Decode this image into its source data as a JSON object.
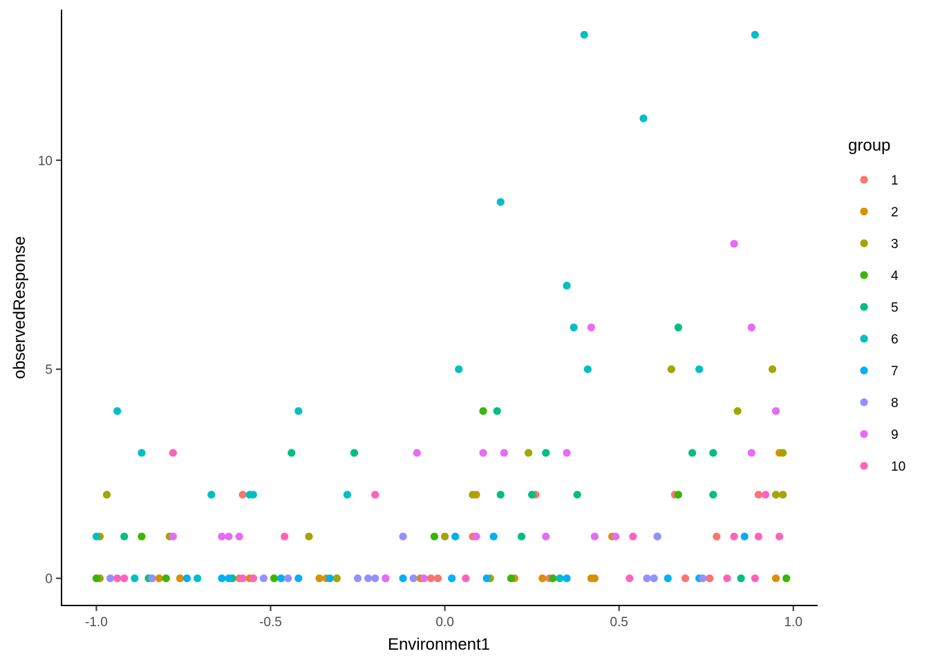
{
  "chart_data": {
    "type": "scatter",
    "title": "",
    "xlabel": "Environment1",
    "ylabel": "observedResponse",
    "xlim": [
      -1.1,
      1.07
    ],
    "ylim": [
      -0.65,
      13.6
    ],
    "xticks": [
      -1.0,
      -0.5,
      0.0,
      0.5,
      1.0
    ],
    "xtick_labels": [
      "-1.0",
      "-0.5",
      "0.0",
      "0.5",
      "1.0"
    ],
    "yticks": [
      0,
      5,
      10
    ],
    "ytick_labels": [
      "0",
      "5",
      "10"
    ],
    "grid": false,
    "legend": {
      "title": "group",
      "placement": "right"
    },
    "series": [
      {
        "name": "1",
        "color": "#F8766D",
        "points": [
          [
            -0.58,
            2
          ],
          [
            0.08,
            1
          ],
          [
            0.26,
            2
          ],
          [
            0.66,
            2
          ],
          [
            0.78,
            1
          ],
          [
            0.9,
            2
          ],
          [
            -0.59,
            0
          ],
          [
            -0.04,
            0
          ],
          [
            -0.02,
            0
          ],
          [
            0.3,
            0
          ],
          [
            0.69,
            0
          ],
          [
            0.76,
            0
          ]
        ]
      },
      {
        "name": "2",
        "color": "#D89000",
        "points": [
          [
            0.09,
            2
          ],
          [
            0.48,
            1
          ],
          [
            0.96,
            3
          ],
          [
            -0.56,
            0
          ],
          [
            -0.36,
            0
          ],
          [
            -0.34,
            0
          ],
          [
            -0.07,
            0
          ],
          [
            0.2,
            0
          ],
          [
            0.28,
            0
          ],
          [
            0.42,
            0
          ],
          [
            0.43,
            0
          ],
          [
            0.95,
            0
          ],
          [
            -0.82,
            0
          ],
          [
            -0.76,
            0
          ]
        ]
      },
      {
        "name": "3",
        "color": "#A3A500",
        "points": [
          [
            -0.97,
            2
          ],
          [
            -0.79,
            1
          ],
          [
            -0.39,
            1
          ],
          [
            0.08,
            2
          ],
          [
            0.24,
            3
          ],
          [
            0.65,
            5
          ],
          [
            0.84,
            4
          ],
          [
            0.94,
            5
          ],
          [
            0.97,
            3
          ],
          [
            0.95,
            2
          ],
          [
            0.97,
            2
          ],
          [
            -0.99,
            1
          ],
          [
            0.0,
            1
          ],
          [
            -0.31,
            0
          ],
          [
            0.13,
            0
          ],
          [
            -0.99,
            0
          ]
        ]
      },
      {
        "name": "4",
        "color": "#39B600",
        "points": [
          [
            0.11,
            4
          ],
          [
            0.67,
            2
          ],
          [
            -0.87,
            1
          ],
          [
            -0.03,
            1
          ],
          [
            -0.49,
            0
          ],
          [
            0.19,
            0
          ],
          [
            0.31,
            0
          ],
          [
            0.98,
            0
          ],
          [
            -1.0,
            0
          ],
          [
            -0.8,
            0
          ],
          [
            -0.55,
            0
          ]
        ]
      },
      {
        "name": "5",
        "color": "#00BF7D",
        "points": [
          [
            -0.44,
            3
          ],
          [
            -0.26,
            3
          ],
          [
            0.15,
            4
          ],
          [
            0.16,
            2
          ],
          [
            0.25,
            2
          ],
          [
            0.29,
            3
          ],
          [
            0.38,
            2
          ],
          [
            0.67,
            6
          ],
          [
            0.71,
            3
          ],
          [
            0.77,
            3
          ],
          [
            0.77,
            2
          ],
          [
            -0.92,
            1
          ],
          [
            0.22,
            1
          ],
          [
            0.61,
            1
          ],
          [
            0.85,
            0
          ],
          [
            -0.85,
            0
          ],
          [
            -0.61,
            0
          ]
        ]
      },
      {
        "name": "6",
        "color": "#00BFC4",
        "points": [
          [
            -0.94,
            4
          ],
          [
            -0.87,
            3
          ],
          [
            -0.67,
            2
          ],
          [
            -0.56,
            2
          ],
          [
            -0.55,
            2
          ],
          [
            -0.42,
            4
          ],
          [
            -0.28,
            2
          ],
          [
            0.04,
            5
          ],
          [
            0.16,
            9
          ],
          [
            0.35,
            7
          ],
          [
            0.37,
            6
          ],
          [
            0.4,
            13
          ],
          [
            0.41,
            5
          ],
          [
            0.57,
            11
          ],
          [
            0.73,
            5
          ],
          [
            0.89,
            13
          ],
          [
            -1.0,
            1
          ],
          [
            -0.71,
            0
          ],
          [
            -0.89,
            0
          ],
          [
            0.33,
            0
          ]
        ]
      },
      {
        "name": "7",
        "color": "#00B0F6",
        "points": [
          [
            0.03,
            1
          ],
          [
            0.14,
            1
          ],
          [
            0.86,
            1
          ],
          [
            -0.74,
            0
          ],
          [
            -0.64,
            0
          ],
          [
            -0.62,
            0
          ],
          [
            -0.47,
            0
          ],
          [
            -0.42,
            0
          ],
          [
            -0.17,
            0
          ],
          [
            -0.12,
            0
          ],
          [
            0.02,
            0
          ],
          [
            0.12,
            0
          ],
          [
            0.35,
            0
          ],
          [
            0.64,
            0
          ],
          [
            0.73,
            0
          ],
          [
            -0.33,
            0
          ]
        ]
      },
      {
        "name": "8",
        "color": "#9590FF",
        "points": [
          [
            -0.12,
            1
          ],
          [
            0.61,
            1
          ],
          [
            -0.96,
            0
          ],
          [
            -0.84,
            0
          ],
          [
            -0.52,
            0
          ],
          [
            -0.45,
            0
          ],
          [
            -0.25,
            0
          ],
          [
            -0.22,
            0
          ],
          [
            -0.2,
            0
          ],
          [
            -0.09,
            0
          ],
          [
            0.58,
            0
          ],
          [
            0.6,
            0
          ],
          [
            0.74,
            0
          ]
        ]
      },
      {
        "name": "9",
        "color": "#E76BF3",
        "points": [
          [
            -0.08,
            3
          ],
          [
            0.11,
            3
          ],
          [
            0.17,
            3
          ],
          [
            0.35,
            3
          ],
          [
            0.42,
            6
          ],
          [
            0.83,
            8
          ],
          [
            0.88,
            6
          ],
          [
            0.88,
            3
          ],
          [
            0.95,
            4
          ],
          [
            -0.78,
            1
          ],
          [
            -0.64,
            1
          ],
          [
            -0.62,
            1
          ],
          [
            -0.59,
            1
          ],
          [
            0.09,
            1
          ],
          [
            0.29,
            1
          ],
          [
            0.43,
            1
          ],
          [
            0.49,
            1
          ],
          [
            -0.17,
            0
          ],
          [
            -0.06,
            0
          ]
        ]
      },
      {
        "name": "10",
        "color": "#FF62BC",
        "points": [
          [
            -0.78,
            3
          ],
          [
            -0.2,
            2
          ],
          [
            0.92,
            2
          ],
          [
            -0.46,
            1
          ],
          [
            0.54,
            1
          ],
          [
            0.83,
            1
          ],
          [
            0.9,
            1
          ],
          [
            0.96,
            1
          ],
          [
            -0.94,
            0
          ],
          [
            -0.92,
            0
          ],
          [
            -0.58,
            0
          ],
          [
            0.06,
            0
          ],
          [
            0.53,
            0
          ],
          [
            0.81,
            0
          ],
          [
            0.89,
            0
          ],
          [
            -0.55,
            0
          ]
        ]
      }
    ]
  }
}
